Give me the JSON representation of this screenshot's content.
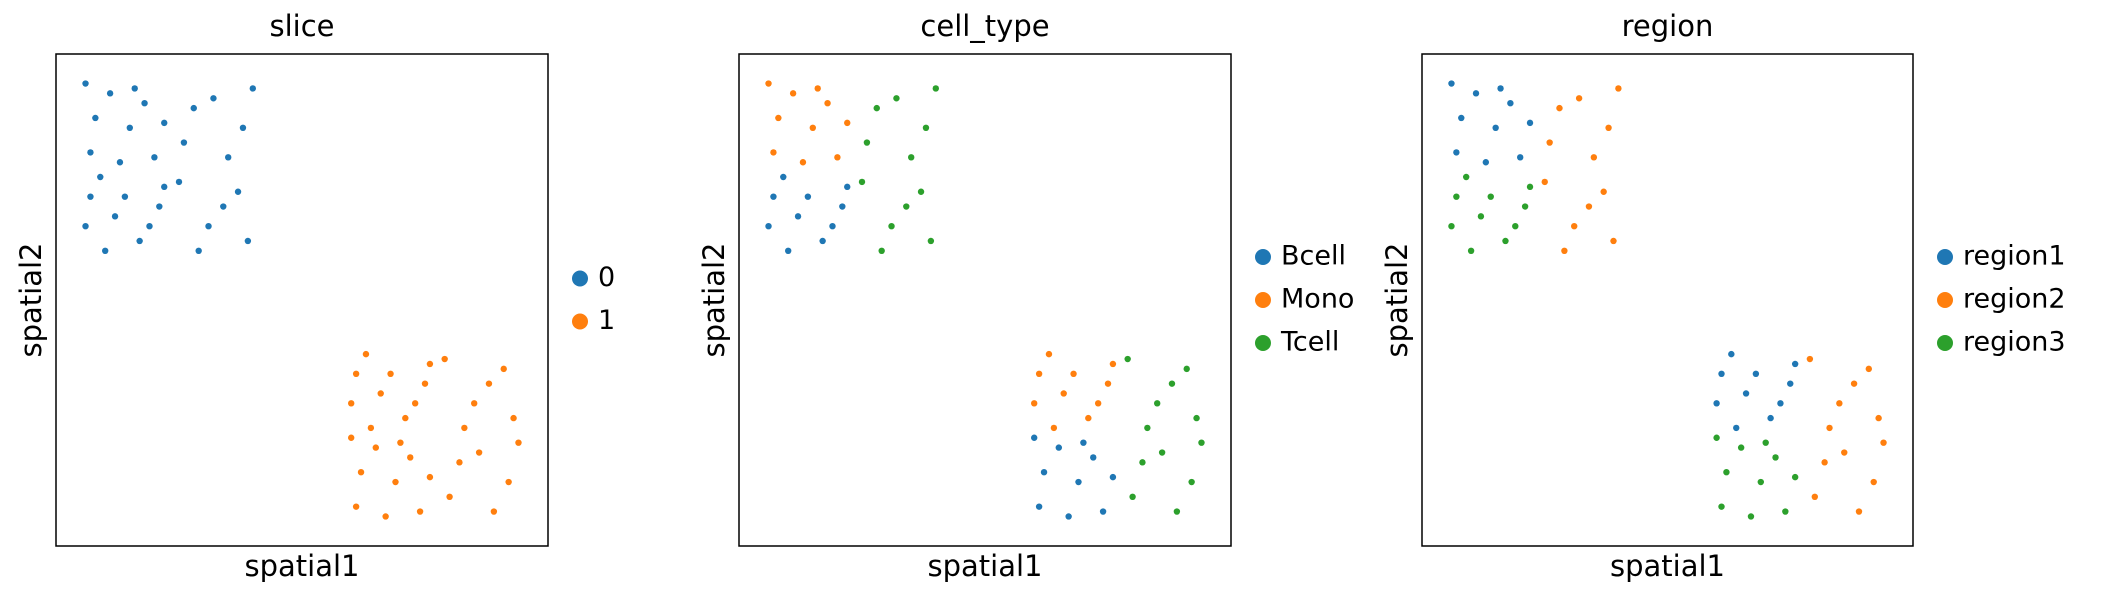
{
  "chart_data": [
    {
      "type": "scatter",
      "title": "slice",
      "xlabel": "spatial1",
      "ylabel": "spatial2",
      "xlim": [
        0,
        100
      ],
      "ylim": [
        0,
        100
      ],
      "legend": "right",
      "series": [
        {
          "name": "0",
          "color": "#1f77b4",
          "x": [
            7,
            11,
            15,
            20,
            8,
            18,
            13,
            22,
            6,
            16,
            6,
            10,
            14,
            19,
            9,
            22,
            17,
            12,
            21,
            7,
            26,
            32,
            38,
            28,
            35,
            40,
            25,
            31,
            37,
            39,
            29,
            34
          ],
          "y": [
            80,
            92,
            85,
            79,
            87,
            90,
            78,
            86,
            94,
            93,
            65,
            60,
            71,
            65,
            75,
            73,
            62,
            67,
            69,
            71,
            82,
            91,
            85,
            89,
            79,
            93,
            74,
            65,
            72,
            62,
            60,
            69
          ]
        },
        {
          "name": "1",
          "color": "#ff7f0e",
          "x": [
            60,
            64,
            68,
            73,
            63,
            76,
            71,
            66,
            75,
            61,
            61,
            65,
            69,
            74,
            62,
            72,
            67,
            76,
            60,
            70,
            79,
            85,
            91,
            93,
            83,
            88,
            80,
            86,
            92,
            82,
            89,
            94
          ],
          "y": [
            29,
            24,
            35,
            29,
            39,
            37,
            26,
            31,
            33,
            35,
            8,
            20,
            13,
            7,
            15,
            18,
            6,
            14,
            22,
            21,
            38,
            29,
            36,
            26,
            24,
            33,
            10,
            19,
            13,
            17,
            7,
            21
          ]
        }
      ]
    },
    {
      "type": "scatter",
      "title": "cell_type",
      "xlabel": "spatial1",
      "ylabel": "spatial2",
      "xlim": [
        0,
        100
      ],
      "ylim": [
        0,
        100
      ],
      "legend": "right",
      "series": [
        {
          "name": "Bcell",
          "color": "#1f77b4",
          "x": [
            6,
            10,
            14,
            19,
            9,
            22,
            17,
            12,
            21,
            7,
            61,
            65,
            69,
            74,
            62,
            72,
            67,
            76,
            60,
            70
          ],
          "y": [
            65,
            60,
            71,
            65,
            75,
            73,
            62,
            67,
            69,
            71,
            8,
            20,
            13,
            7,
            15,
            18,
            6,
            14,
            22,
            21
          ]
        },
        {
          "name": "Mono",
          "color": "#ff7f0e",
          "x": [
            7,
            11,
            15,
            20,
            8,
            18,
            13,
            22,
            6,
            16,
            60,
            64,
            68,
            73,
            63,
            76,
            71,
            66,
            75,
            61
          ],
          "y": [
            80,
            92,
            85,
            79,
            87,
            90,
            78,
            86,
            94,
            93,
            29,
            24,
            35,
            29,
            39,
            37,
            26,
            31,
            33,
            35
          ]
        },
        {
          "name": "Tcell",
          "color": "#2ca02c",
          "x": [
            26,
            32,
            38,
            28,
            35,
            40,
            25,
            31,
            37,
            39,
            29,
            34,
            79,
            85,
            91,
            93,
            83,
            88,
            80,
            86,
            92,
            82,
            89,
            94
          ],
          "y": [
            82,
            91,
            85,
            89,
            79,
            93,
            74,
            65,
            72,
            62,
            60,
            69,
            38,
            29,
            36,
            26,
            24,
            33,
            10,
            19,
            13,
            17,
            7,
            21
          ]
        }
      ]
    },
    {
      "type": "scatter",
      "title": "region",
      "xlabel": "spatial1",
      "ylabel": "spatial2",
      "xlim": [
        0,
        100
      ],
      "ylim": [
        0,
        100
      ],
      "legend": "right",
      "series": [
        {
          "name": "region1",
          "color": "#1f77b4",
          "x": [
            7,
            11,
            15,
            20,
            8,
            18,
            13,
            22,
            6,
            16,
            60,
            64,
            68,
            73,
            63,
            76,
            71,
            66,
            75,
            61
          ],
          "y": [
            80,
            92,
            85,
            79,
            87,
            90,
            78,
            86,
            94,
            93,
            29,
            24,
            35,
            29,
            39,
            37,
            26,
            31,
            33,
            35
          ]
        },
        {
          "name": "region2",
          "color": "#ff7f0e",
          "x": [
            26,
            32,
            38,
            28,
            35,
            40,
            25,
            31,
            37,
            39,
            29,
            34,
            79,
            85,
            91,
            93,
            83,
            88,
            80,
            86,
            92,
            82,
            89,
            94
          ],
          "y": [
            82,
            91,
            85,
            89,
            79,
            93,
            74,
            65,
            72,
            62,
            60,
            69,
            38,
            29,
            36,
            26,
            24,
            33,
            10,
            19,
            13,
            17,
            7,
            21
          ]
        },
        {
          "name": "region3",
          "color": "#2ca02c",
          "x": [
            6,
            10,
            14,
            19,
            9,
            22,
            17,
            12,
            21,
            7,
            61,
            65,
            69,
            74,
            62,
            72,
            67,
            76,
            60,
            70
          ],
          "y": [
            65,
            60,
            71,
            65,
            75,
            73,
            62,
            67,
            69,
            71,
            8,
            20,
            13,
            7,
            15,
            18,
            6,
            14,
            22,
            21
          ]
        }
      ]
    }
  ]
}
